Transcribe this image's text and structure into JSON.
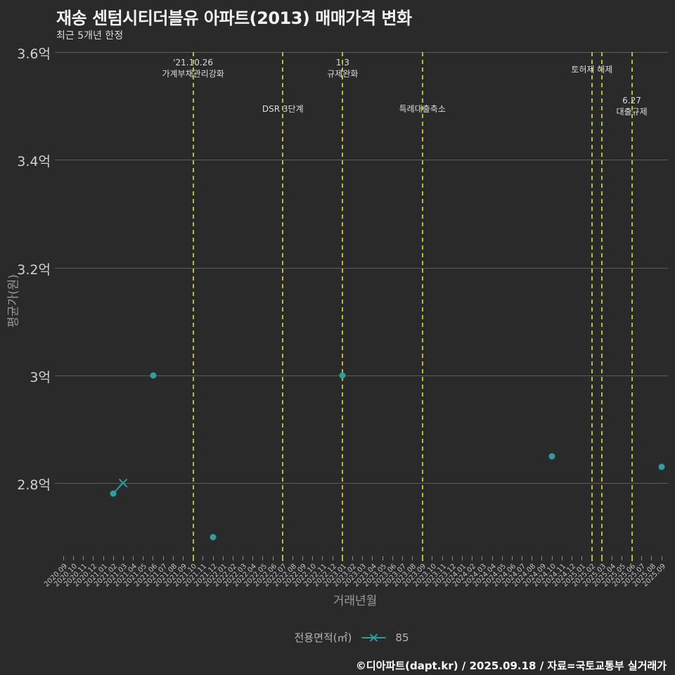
{
  "header": {
    "title": "재송 센텀시티더블유 아파트(2013) 매매가격 변화",
    "subtitle": "최근 5개년 한정"
  },
  "legend": {
    "label": "전용면적(㎡)",
    "series_value": "85",
    "marker": "x-on-line"
  },
  "footer": {
    "credit": "©디아파트(dapt.kr) / 2025.09.18 / 자료=국토교통부 실거래가"
  },
  "colors": {
    "background": "#2a2a2a",
    "grid": "#5d5d5d",
    "event_line": "#b9bd33",
    "series": "#2f9e9e",
    "title_text": "#f2f2f2",
    "muted_text": "#9a9a9a"
  },
  "chart_data": {
    "type": "scatter",
    "title": "재송 센텀시티더블유 아파트(2013) 매매가격 변화",
    "subtitle": "최근 5개년 한정",
    "xlabel": "거래년월",
    "ylabel": "평균가(원)",
    "unit": "억원",
    "grid": true,
    "legend_position": "bottom-center",
    "ylim": [
      2.67,
      3.6
    ],
    "y_ticks": [
      {
        "label": "3.6억",
        "value": 3.6
      },
      {
        "label": "3.4억",
        "value": 3.4
      },
      {
        "label": "3.2억",
        "value": 3.2
      },
      {
        "label": "3억",
        "value": 3.0
      },
      {
        "label": "2.8억",
        "value": 2.8
      }
    ],
    "x_categories": [
      "2020.09",
      "2020.10",
      "2020.11",
      "2020.12",
      "2021.01",
      "2021.02",
      "2021.03",
      "2021.04",
      "2021.05",
      "2021.06",
      "2021.07",
      "2021.08",
      "2021.09",
      "2021.10",
      "2021.11",
      "2021.12",
      "2022.01",
      "2022.02",
      "2022.03",
      "2022.04",
      "2022.05",
      "2022.06",
      "2022.07",
      "2022.08",
      "2022.09",
      "2022.10",
      "2022.11",
      "2022.12",
      "2023.01",
      "2023.02",
      "2023.03",
      "2023.04",
      "2023.05",
      "2023.06",
      "2023.07",
      "2023.08",
      "2023.09",
      "2023.10",
      "2023.11",
      "2023.12",
      "2024.01",
      "2024.02",
      "2024.03",
      "2024.04",
      "2024.05",
      "2024.06",
      "2024.07",
      "2024.08",
      "2024.09",
      "2024.10",
      "2024.11",
      "2024.12",
      "2025.01",
      "2025.02",
      "2025.03",
      "2025.04",
      "2025.05",
      "2025.06",
      "2025.07",
      "2025.08",
      "2025.09"
    ],
    "series": [
      {
        "name": "85",
        "color": "#2f9e9e",
        "points": [
          {
            "x": "2021.02",
            "y": 2.78,
            "marker": "dot"
          },
          {
            "x": "2021.03",
            "y": 2.8,
            "marker": "x"
          },
          {
            "x": "2021.06",
            "y": 3.0,
            "marker": "dot"
          },
          {
            "x": "2021.12",
            "y": 2.7,
            "marker": "dot"
          },
          {
            "x": "2023.01",
            "y": 3.0,
            "marker": "dot"
          },
          {
            "x": "2024.10",
            "y": 2.85,
            "marker": "dot"
          },
          {
            "x": "2025.09",
            "y": 2.83,
            "marker": "dot"
          }
        ],
        "line_segments": [
          [
            "2021.02",
            "2021.03"
          ]
        ]
      }
    ],
    "events": [
      {
        "month": "2021.10",
        "label_lines": [
          "'21.10.26",
          "가계부채관리강화"
        ],
        "row": 1
      },
      {
        "month": "2022.07",
        "label_lines": [
          "DSR 3단계"
        ],
        "row": 2
      },
      {
        "month": "2023.01",
        "label_lines": [
          "1.3",
          "규제완화"
        ],
        "row": 1
      },
      {
        "month": "2023.09",
        "label_lines": [
          "특례대출축소"
        ],
        "row": 2
      },
      {
        "month": "2025.02",
        "label_lines": [
          "토허제 해제"
        ],
        "row": 1
      },
      {
        "month": "2025.03",
        "label_lines": [],
        "row": 1
      },
      {
        "month": "2025.06",
        "label_lines": [
          "6.27",
          "대출규제"
        ],
        "row": 2
      }
    ]
  }
}
